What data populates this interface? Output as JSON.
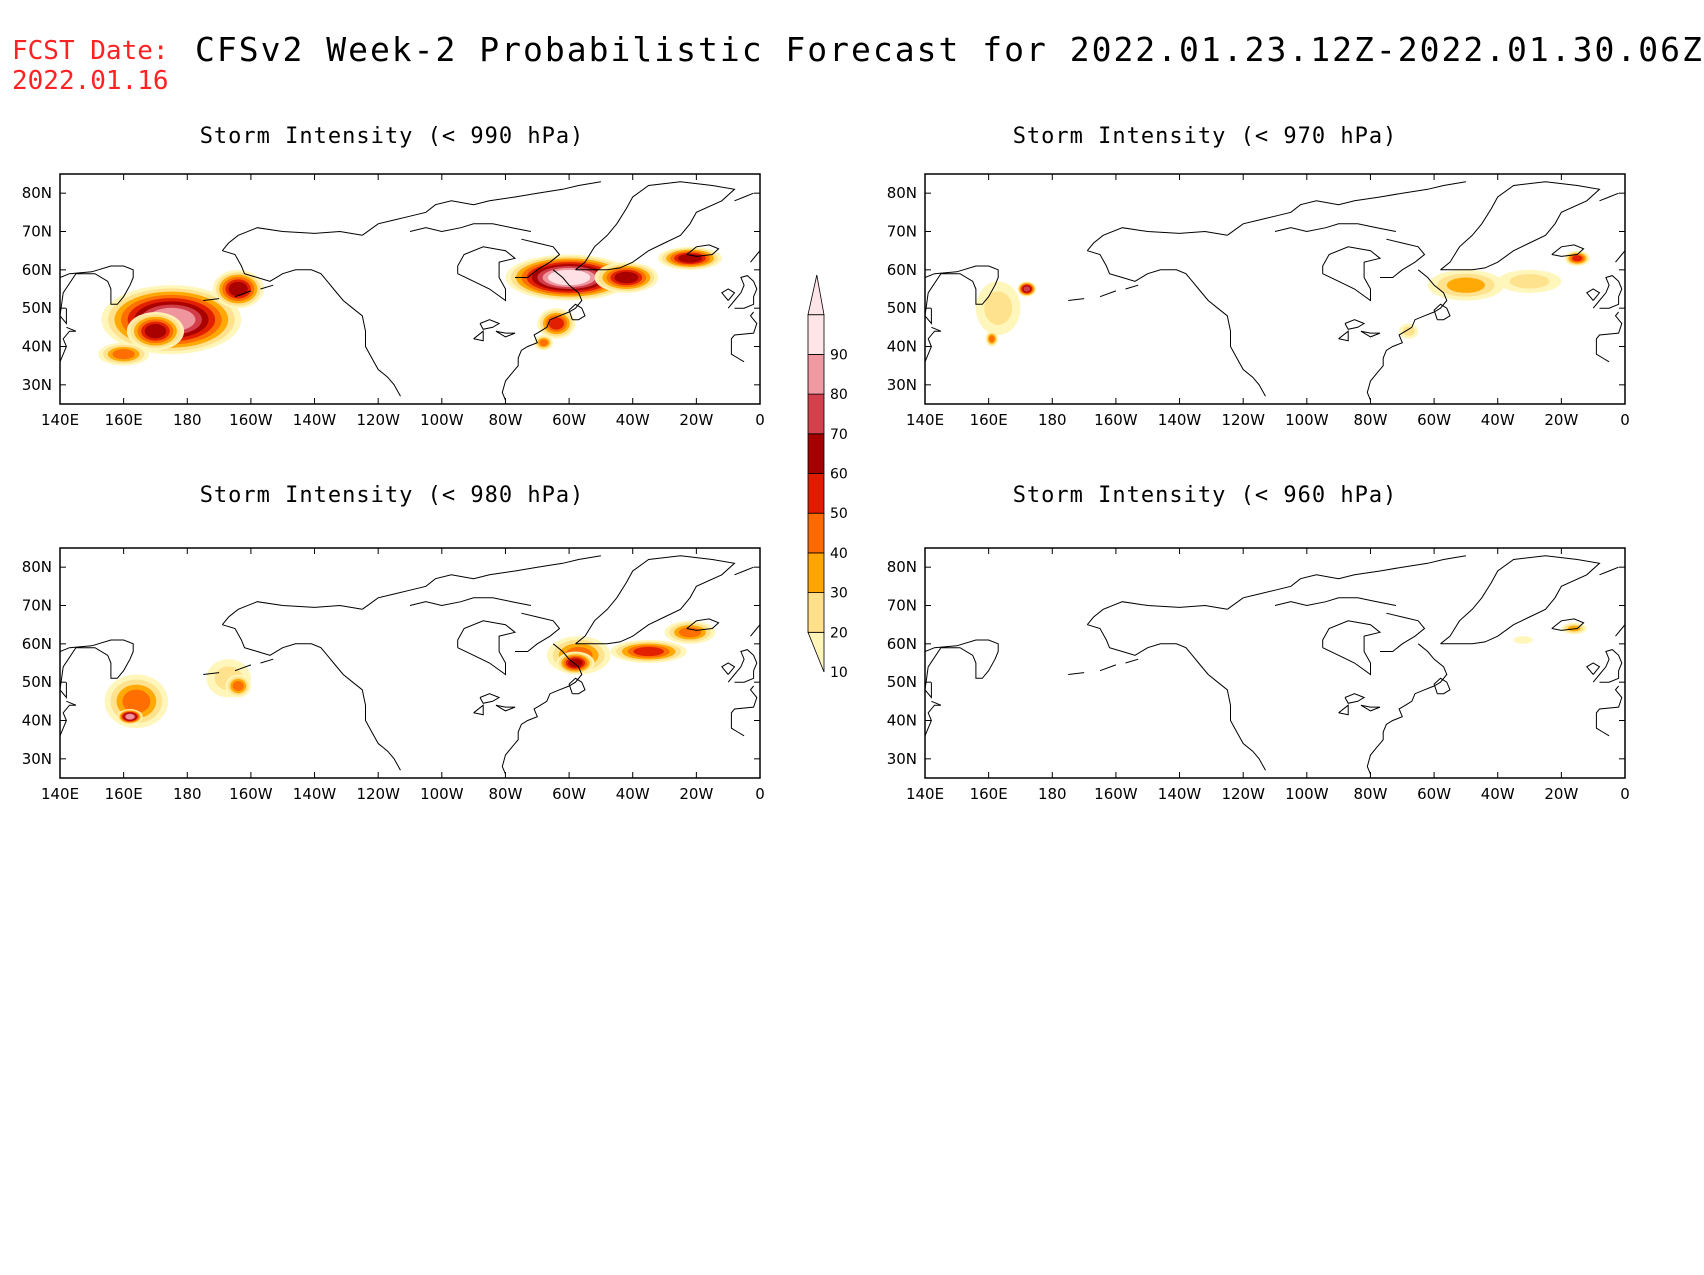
{
  "header": {
    "fcst_label": "FCST Date:",
    "fcst_date": "2022.01.16",
    "title": "CFSv2 Week-2 Probabilistic Forecast for 2022.01.23.12Z-2022.01.30.06Z"
  },
  "axes": {
    "lon_labels": [
      "140E",
      "160E",
      "180",
      "160W",
      "140W",
      "120W",
      "100W",
      "80W",
      "60W",
      "40W",
      "20W",
      "0"
    ],
    "lat_labels": [
      "80N",
      "70N",
      "60N",
      "50N",
      "40N",
      "30N"
    ]
  },
  "colorbar": {
    "levels": [
      "10",
      "20",
      "30",
      "40",
      "50",
      "60",
      "70",
      "80",
      "90"
    ],
    "colors": [
      "#fff5b8",
      "#ffe08a",
      "#ffa500",
      "#ff6a00",
      "#e01b00",
      "#a40000",
      "#d3414d",
      "#ef9aa2",
      "#ffe4e8"
    ]
  },
  "panels": [
    {
      "title": "Storm Intensity (< 990 hPa)",
      "blobs": [
        {
          "lon": 175,
          "lat": 47,
          "rx": 22,
          "ry": 9,
          "p": 80
        },
        {
          "lon": 170,
          "lat": 44,
          "rx": 9,
          "ry": 5,
          "p": 60
        },
        {
          "lon": 196,
          "lat": 55,
          "rx": 8,
          "ry": 5,
          "p": 60
        },
        {
          "lon": 160,
          "lat": 38,
          "rx": 8,
          "ry": 3,
          "p": 40
        },
        {
          "lon": 300,
          "lat": 58,
          "rx": 20,
          "ry": 6,
          "p": 90
        },
        {
          "lon": 318,
          "lat": 58,
          "rx": 10,
          "ry": 4,
          "p": 60
        },
        {
          "lon": 296,
          "lat": 46,
          "rx": 6,
          "ry": 4,
          "p": 50
        },
        {
          "lon": 292,
          "lat": 41,
          "rx": 3,
          "ry": 2,
          "p": 40
        },
        {
          "lon": 338,
          "lat": 63,
          "rx": 10,
          "ry": 3,
          "p": 60
        }
      ]
    },
    {
      "title": "Storm Intensity (< 970 hPa)",
      "blobs": [
        {
          "lon": 163,
          "lat": 50,
          "rx": 7,
          "ry": 7,
          "p": 20
        },
        {
          "lon": 172,
          "lat": 55,
          "rx": 3,
          "ry": 2,
          "p": 70
        },
        {
          "lon": 161,
          "lat": 42,
          "rx": 2,
          "ry": 2,
          "p": 40
        },
        {
          "lon": 310,
          "lat": 56,
          "rx": 12,
          "ry": 4,
          "p": 30
        },
        {
          "lon": 330,
          "lat": 57,
          "rx": 10,
          "ry": 3,
          "p": 20
        },
        {
          "lon": 345,
          "lat": 63,
          "rx": 4,
          "ry": 2,
          "p": 50
        },
        {
          "lon": 292,
          "lat": 44,
          "rx": 3,
          "ry": 2,
          "p": 20
        }
      ]
    },
    {
      "title": "Storm Intensity (< 980 hPa)",
      "blobs": [
        {
          "lon": 164,
          "lat": 45,
          "rx": 10,
          "ry": 7,
          "p": 40
        },
        {
          "lon": 162,
          "lat": 41,
          "rx": 4,
          "ry": 2,
          "p": 80
        },
        {
          "lon": 193,
          "lat": 51,
          "rx": 7,
          "ry": 5,
          "p": 20
        },
        {
          "lon": 196,
          "lat": 49,
          "rx": 4,
          "ry": 3,
          "p": 40
        },
        {
          "lon": 303,
          "lat": 57,
          "rx": 10,
          "ry": 5,
          "p": 40
        },
        {
          "lon": 302,
          "lat": 55,
          "rx": 6,
          "ry": 3,
          "p": 60
        },
        {
          "lon": 325,
          "lat": 58,
          "rx": 12,
          "ry": 3,
          "p": 50
        },
        {
          "lon": 338,
          "lat": 63,
          "rx": 8,
          "ry": 3,
          "p": 40
        }
      ]
    },
    {
      "title": "Storm Intensity (< 960 hPa)",
      "blobs": [
        {
          "lon": 344,
          "lat": 64,
          "rx": 4,
          "ry": 1.5,
          "p": 30
        },
        {
          "lon": 328,
          "lat": 61,
          "rx": 3,
          "ry": 1,
          "p": 10
        }
      ]
    }
  ]
}
